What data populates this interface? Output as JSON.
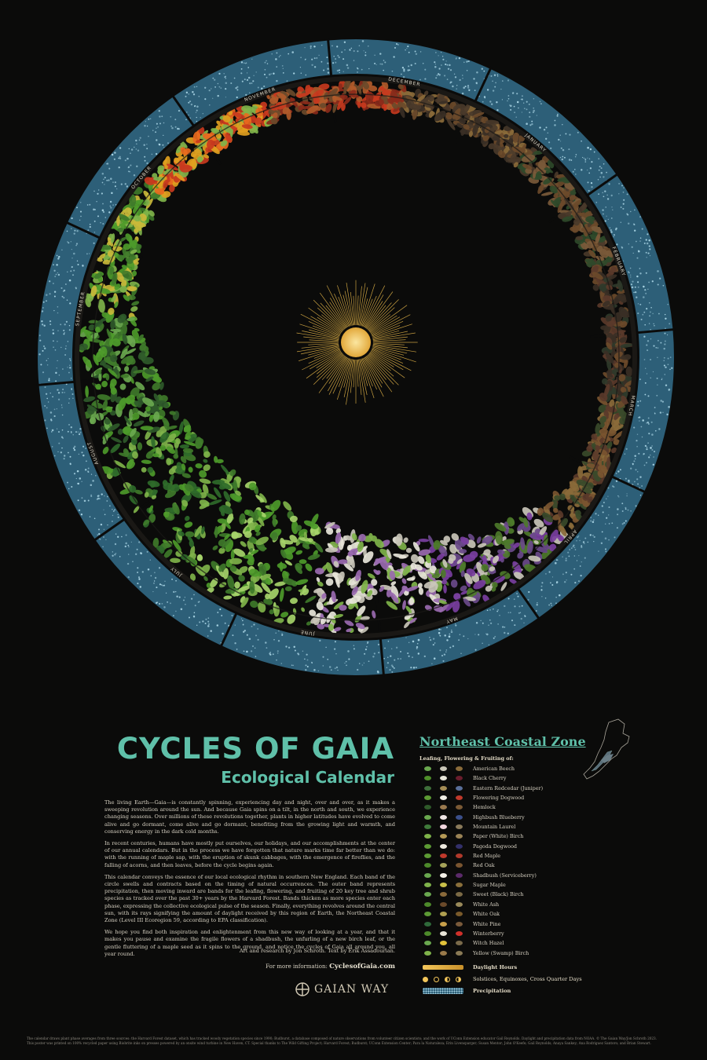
{
  "poster": {
    "title": "CYCLES OF GAIA",
    "subtitle": "Ecological Calendar",
    "paragraphs": [
      "The living Earth—Gaia—is constantly spinning, experiencing day and night, over and over, as it makes a sweeping revolution around the sun. And because Gaia spins on a tilt, in the north and south, we experience changing seasons. Over millions of these revolutions together, plants in higher latitudes have evolved to come alive and go dormant, come alive and go dormant, benefiting from the growing light and warmth, and conserving energy in the dark cold months.",
      "In recent centuries, humans have mostly put ourselves, our holidays, and our accomplishments at the center of our annual calendars. But in the process we have forgotten that nature marks time far better than we do: with the running of maple sap, with the eruption of skunk cabbages, with the emergence of fireflies, and the falling of acorns, and then leaves, before the cycle begins again.",
      "This calendar conveys the essence of our local ecological rhythm in southern New England. Each band of the circle swells and contracts based on the timing of natural occurrences. The outer band represents precipitation, then moving inward are bands for the leafing, flowering, and fruiting of 20 key tree and shrub species as tracked over the past 30+ years by the Harvard Forest. Bands thicken as more species enter each phase, expressing the collective ecological pulse of the season. Finally, everything revolves around the central sun, with its rays signifying the amount of daylight received by this region of Earth, the Northeast Coastal Zone (Level III Ecoregion 59, according to EPA classification).",
      "We hope you find both inspiration and enlightenment from this new way of looking at a year, and that it makes you pause and examine the fragile flowers of a shadbush, the unfurling of a new birch leaf, or the gentle fluttering of a maple seed as it spins to the ground, and notice the cycles of Gaia all around you, all year round."
    ],
    "credits": "Art and research by Jon Schroth. Text by Erik Assadourian.",
    "more_info_label": "For more information:",
    "more_info_url": "CyclesofGaia.com",
    "brand": "GAIAN WAY",
    "footer_1": "The calendar draws plant phase averages from three sources: the Harvard Forest dataset, which has tracked woody vegetation species since 1990; Budburst, a database composed of nature observations from volunteer citizen scientists; and the work of UConn Extension educator Gail Reynolds. Daylight and precipitation data from NOAA. © The Gaian Way/Jon Schroth 2023.",
    "footer_2": "This poster was printed on 100% recycled paper using Biobrite inks on presses powered by an onsite wind turbine in New Haven, CT. Special thanks to The Wild Gifting Project; Harvard Forest; Budburst; UConn Extension Center; Para la Naturaleza; Erin Livensparger; Susan Mentor; John O'Keefe; Gail Reynolds; Anaya Sankey; Ana Rodriguez Santoro; and Brian Stewart."
  },
  "zone": {
    "title": "Northeast Coastal Zone",
    "subtitle": "Leafing, Flowering & Fruiting of:",
    "species": [
      "American Beech",
      "Black Cherry",
      "Eastern Redcedar (Juniper)",
      "Flowering Dogwood",
      "Hemlock",
      "Highbush Blueberry",
      "Mountain Laurel",
      "Paper (White) Birch",
      "Pagoda Dogwood",
      "Red Maple",
      "Red Oak",
      "Shadbush (Serviceberry)",
      "Sugar Maple",
      "Sweet (Black) Birch",
      "White Ash",
      "White Oak",
      "White Pine",
      "Winterberry",
      "Witch Hazel",
      "Yellow (Swamp) Birch"
    ],
    "daylight_label": "Daylight Hours",
    "solstice_label": "Solstices, Equinoxes, Cross Quarter Days",
    "precip_label": "Precipitation"
  },
  "wheel": {
    "months": [
      "JANUARY",
      "FEBRUARY",
      "MARCH",
      "APRIL",
      "MAY",
      "JUNE",
      "JULY",
      "AUGUST",
      "SEPTEMBER",
      "OCTOBER",
      "NOVEMBER",
      "DECEMBER"
    ]
  },
  "colors": {
    "teal": "#5fc0a9",
    "precip": "#2d5f78",
    "sun": "#f3c65a",
    "leaf_green": "#4d9a2a",
    "autumn_red": "#c83a1e",
    "flower_purple": "#7a3fa0"
  }
}
